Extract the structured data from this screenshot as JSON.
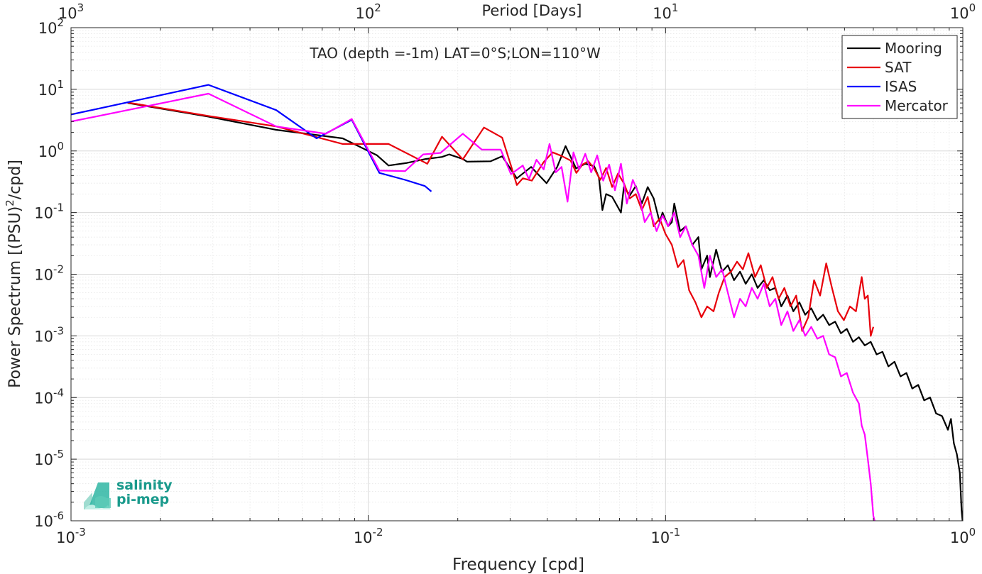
{
  "chart_data": {
    "type": "line",
    "title": "TAO (depth =-1m) LAT=0°S;LON=110°W",
    "xlabel": "Frequency [cpd]",
    "ylabel": "Power Spectrum [(PSU)^2/cpd]",
    "ylabel_parts": {
      "base": "Power Spectrum [(PSU)",
      "sup": "2",
      "tail": "/cpd]"
    },
    "top_xlabel": "Period [Days]",
    "x_scale": "log",
    "y_scale": "log",
    "xlim": [
      0.001,
      1
    ],
    "ylim": [
      1e-06,
      100
    ],
    "grid": true,
    "legend_position": "top-right",
    "x_ticks": [
      {
        "value": 0.001,
        "base": "10",
        "exp": "-3"
      },
      {
        "value": 0.01,
        "base": "10",
        "exp": "-2"
      },
      {
        "value": 0.1,
        "base": "10",
        "exp": "-1"
      },
      {
        "value": 1,
        "base": "10",
        "exp": "0"
      }
    ],
    "top_ticks": [
      {
        "value": 0.001,
        "base": "10",
        "exp": "3"
      },
      {
        "value": 0.01,
        "base": "10",
        "exp": "2"
      },
      {
        "value": 0.1,
        "base": "10",
        "exp": "1"
      },
      {
        "value": 1,
        "base": "10",
        "exp": "0"
      }
    ],
    "y_ticks": [
      {
        "value": 100,
        "base": "10",
        "exp": "2"
      },
      {
        "value": 10,
        "base": "10",
        "exp": "1"
      },
      {
        "value": 1,
        "base": "10",
        "exp": "0"
      },
      {
        "value": 0.1,
        "base": "10",
        "exp": "-1"
      },
      {
        "value": 0.01,
        "base": "10",
        "exp": "-2"
      },
      {
        "value": 0.001,
        "base": "10",
        "exp": "-3"
      },
      {
        "value": 0.0001,
        "base": "10",
        "exp": "-4"
      },
      {
        "value": 1e-05,
        "base": "10",
        "exp": "-5"
      },
      {
        "value": 1e-06,
        "base": "10",
        "exp": "-6"
      }
    ],
    "series": [
      {
        "name": "Mooring",
        "color": "#000000",
        "points": [
          [
            0.00155,
            6.0
          ],
          [
            0.0029,
            3.6
          ],
          [
            0.0049,
            2.2
          ],
          [
            0.0082,
            1.6
          ],
          [
            0.0107,
            0.85
          ],
          [
            0.0117,
            0.58
          ],
          [
            0.0135,
            0.64
          ],
          [
            0.0156,
            0.74
          ],
          [
            0.0177,
            0.8
          ],
          [
            0.0187,
            0.88
          ],
          [
            0.0208,
            0.74
          ],
          [
            0.0215,
            0.67
          ],
          [
            0.0258,
            0.68
          ],
          [
            0.0282,
            0.82
          ],
          [
            0.0316,
            0.36
          ],
          [
            0.0353,
            0.55
          ],
          [
            0.0398,
            0.3
          ],
          [
            0.0432,
            0.55
          ],
          [
            0.0461,
            1.2
          ],
          [
            0.05,
            0.52
          ],
          [
            0.0537,
            0.62
          ],
          [
            0.0575,
            0.57
          ],
          [
            0.0597,
            0.37
          ],
          [
            0.0613,
            0.11
          ],
          [
            0.0631,
            0.2
          ],
          [
            0.0661,
            0.18
          ],
          [
            0.0708,
            0.1
          ],
          [
            0.0724,
            0.26
          ],
          [
            0.0758,
            0.19
          ],
          [
            0.0794,
            0.27
          ],
          [
            0.0832,
            0.14
          ],
          [
            0.0871,
            0.26
          ],
          [
            0.0912,
            0.17
          ],
          [
            0.0955,
            0.07
          ],
          [
            0.0977,
            0.1
          ],
          [
            0.102,
            0.06
          ],
          [
            0.105,
            0.07
          ],
          [
            0.107,
            0.14
          ],
          [
            0.112,
            0.05
          ],
          [
            0.117,
            0.06
          ],
          [
            0.123,
            0.03
          ],
          [
            0.129,
            0.04
          ],
          [
            0.132,
            0.012
          ],
          [
            0.138,
            0.02
          ],
          [
            0.141,
            0.009
          ],
          [
            0.148,
            0.025
          ],
          [
            0.155,
            0.011
          ],
          [
            0.162,
            0.014
          ],
          [
            0.17,
            0.008
          ],
          [
            0.178,
            0.011
          ],
          [
            0.186,
            0.007
          ],
          [
            0.195,
            0.01
          ],
          [
            0.204,
            0.006
          ],
          [
            0.214,
            0.008
          ],
          [
            0.224,
            0.0055
          ],
          [
            0.234,
            0.006
          ],
          [
            0.245,
            0.003
          ],
          [
            0.257,
            0.0045
          ],
          [
            0.269,
            0.0025
          ],
          [
            0.282,
            0.0035
          ],
          [
            0.295,
            0.0022
          ],
          [
            0.309,
            0.0028
          ],
          [
            0.324,
            0.0018
          ],
          [
            0.339,
            0.0022
          ],
          [
            0.355,
            0.0015
          ],
          [
            0.372,
            0.0017
          ],
          [
            0.389,
            0.0011
          ],
          [
            0.407,
            0.0013
          ],
          [
            0.427,
            0.0008
          ],
          [
            0.447,
            0.00095
          ],
          [
            0.468,
            0.0007
          ],
          [
            0.49,
            0.0008
          ],
          [
            0.513,
            0.0005
          ],
          [
            0.537,
            0.00055
          ],
          [
            0.562,
            0.00032
          ],
          [
            0.589,
            0.00038
          ],
          [
            0.617,
            0.00022
          ],
          [
            0.646,
            0.00025
          ],
          [
            0.676,
            0.00014
          ],
          [
            0.708,
            0.00016
          ],
          [
            0.741,
            9e-05
          ],
          [
            0.776,
            0.0001
          ],
          [
            0.813,
            5.5e-05
          ],
          [
            0.851,
            5e-05
          ],
          [
            0.891,
            3e-05
          ],
          [
            0.912,
            4.5e-05
          ],
          [
            0.933,
            1.8e-05
          ],
          [
            0.955,
            1.2e-05
          ],
          [
            0.977,
            6e-06
          ],
          [
            0.99,
            1.5e-06
          ],
          [
            1.0,
            9e-07
          ]
        ]
      },
      {
        "name": "SAT",
        "color": "#e8000b",
        "points": [
          [
            0.00155,
            6.1
          ],
          [
            0.0029,
            3.7
          ],
          [
            0.0049,
            2.5
          ],
          [
            0.0082,
            1.3
          ],
          [
            0.0117,
            1.3
          ],
          [
            0.0158,
            0.62
          ],
          [
            0.0177,
            1.7
          ],
          [
            0.0208,
            0.73
          ],
          [
            0.0245,
            2.4
          ],
          [
            0.0282,
            1.65
          ],
          [
            0.0302,
            0.58
          ],
          [
            0.0316,
            0.28
          ],
          [
            0.0331,
            0.36
          ],
          [
            0.0355,
            0.33
          ],
          [
            0.0389,
            0.66
          ],
          [
            0.0417,
            0.95
          ],
          [
            0.0447,
            0.83
          ],
          [
            0.0479,
            0.7
          ],
          [
            0.0501,
            0.44
          ],
          [
            0.0525,
            0.6
          ],
          [
            0.055,
            0.68
          ],
          [
            0.0575,
            0.52
          ],
          [
            0.0603,
            0.34
          ],
          [
            0.0631,
            0.53
          ],
          [
            0.0661,
            0.26
          ],
          [
            0.0692,
            0.43
          ],
          [
            0.0724,
            0.3
          ],
          [
            0.0758,
            0.17
          ],
          [
            0.0794,
            0.2
          ],
          [
            0.0832,
            0.11
          ],
          [
            0.0871,
            0.18
          ],
          [
            0.0912,
            0.06
          ],
          [
            0.0955,
            0.08
          ],
          [
            0.1,
            0.045
          ],
          [
            0.105,
            0.03
          ],
          [
            0.11,
            0.013
          ],
          [
            0.115,
            0.017
          ],
          [
            0.12,
            0.0055
          ],
          [
            0.126,
            0.0035
          ],
          [
            0.132,
            0.002
          ],
          [
            0.138,
            0.003
          ],
          [
            0.145,
            0.0025
          ],
          [
            0.151,
            0.005
          ],
          [
            0.158,
            0.009
          ],
          [
            0.166,
            0.011
          ],
          [
            0.174,
            0.016
          ],
          [
            0.182,
            0.012
          ],
          [
            0.19,
            0.022
          ],
          [
            0.2,
            0.009
          ],
          [
            0.209,
            0.014
          ],
          [
            0.219,
            0.006
          ],
          [
            0.229,
            0.009
          ],
          [
            0.24,
            0.004
          ],
          [
            0.251,
            0.006
          ],
          [
            0.263,
            0.003
          ],
          [
            0.275,
            0.0045
          ],
          [
            0.288,
            0.0012
          ],
          [
            0.302,
            0.002
          ],
          [
            0.316,
            0.008
          ],
          [
            0.331,
            0.0045
          ],
          [
            0.347,
            0.015
          ],
          [
            0.363,
            0.006
          ],
          [
            0.38,
            0.0025
          ],
          [
            0.398,
            0.0018
          ],
          [
            0.417,
            0.003
          ],
          [
            0.437,
            0.0025
          ],
          [
            0.457,
            0.009
          ],
          [
            0.468,
            0.004
          ],
          [
            0.479,
            0.0045
          ],
          [
            0.49,
            0.001
          ],
          [
            0.5,
            0.0014
          ]
        ]
      },
      {
        "name": "ISAS",
        "color": "#0000ff",
        "points": [
          [
            0.001,
            3.9
          ],
          [
            0.0029,
            11.8
          ],
          [
            0.0049,
            4.6
          ],
          [
            0.0067,
            1.6
          ],
          [
            0.0088,
            3.2
          ],
          [
            0.0109,
            0.44
          ],
          [
            0.0133,
            0.34
          ],
          [
            0.0155,
            0.27
          ],
          [
            0.0163,
            0.22
          ]
        ]
      },
      {
        "name": "Mercator",
        "color": "#ff00ff",
        "points": [
          [
            0.001,
            3.0
          ],
          [
            0.0029,
            8.5
          ],
          [
            0.0049,
            2.5
          ],
          [
            0.0072,
            1.9
          ],
          [
            0.0088,
            3.3
          ],
          [
            0.0109,
            0.48
          ],
          [
            0.0133,
            0.47
          ],
          [
            0.0153,
            0.88
          ],
          [
            0.0175,
            0.93
          ],
          [
            0.0208,
            1.9
          ],
          [
            0.0241,
            1.05
          ],
          [
            0.0279,
            1.05
          ],
          [
            0.0302,
            0.42
          ],
          [
            0.0331,
            0.58
          ],
          [
            0.0347,
            0.35
          ],
          [
            0.0368,
            0.72
          ],
          [
            0.0389,
            0.5
          ],
          [
            0.0407,
            1.3
          ],
          [
            0.0427,
            0.45
          ],
          [
            0.0447,
            0.55
          ],
          [
            0.0468,
            0.15
          ],
          [
            0.049,
            0.95
          ],
          [
            0.0512,
            0.5
          ],
          [
            0.0537,
            0.9
          ],
          [
            0.0562,
            0.45
          ],
          [
            0.0589,
            0.85
          ],
          [
            0.0617,
            0.33
          ],
          [
            0.0646,
            0.6
          ],
          [
            0.0676,
            0.23
          ],
          [
            0.0708,
            0.62
          ],
          [
            0.0741,
            0.14
          ],
          [
            0.0776,
            0.34
          ],
          [
            0.0813,
            0.2
          ],
          [
            0.0851,
            0.07
          ],
          [
            0.0891,
            0.1
          ],
          [
            0.0933,
            0.05
          ],
          [
            0.0977,
            0.09
          ],
          [
            0.102,
            0.06
          ],
          [
            0.107,
            0.1
          ],
          [
            0.112,
            0.04
          ],
          [
            0.117,
            0.06
          ],
          [
            0.123,
            0.03
          ],
          [
            0.129,
            0.02
          ],
          [
            0.135,
            0.006
          ],
          [
            0.141,
            0.02
          ],
          [
            0.148,
            0.009
          ],
          [
            0.155,
            0.012
          ],
          [
            0.162,
            0.005
          ],
          [
            0.17,
            0.002
          ],
          [
            0.178,
            0.004
          ],
          [
            0.186,
            0.003
          ],
          [
            0.195,
            0.006
          ],
          [
            0.204,
            0.004
          ],
          [
            0.214,
            0.007
          ],
          [
            0.224,
            0.003
          ],
          [
            0.234,
            0.004
          ],
          [
            0.245,
            0.0015
          ],
          [
            0.257,
            0.0025
          ],
          [
            0.269,
            0.0012
          ],
          [
            0.282,
            0.0018
          ],
          [
            0.295,
            0.001
          ],
          [
            0.309,
            0.0014
          ],
          [
            0.324,
            0.0009
          ],
          [
            0.339,
            0.001
          ],
          [
            0.355,
            0.0005
          ],
          [
            0.372,
            0.00045
          ],
          [
            0.389,
            0.00022
          ],
          [
            0.407,
            0.00025
          ],
          [
            0.427,
            0.00012
          ],
          [
            0.447,
            8e-05
          ],
          [
            0.457,
            3.5e-05
          ],
          [
            0.468,
            2.5e-05
          ],
          [
            0.479,
            1e-05
          ],
          [
            0.49,
            4e-06
          ],
          [
            0.5,
            1.2e-06
          ],
          [
            0.505,
            1e-06
          ]
        ]
      }
    ]
  },
  "logo": {
    "line1": "salinity",
    "line2": "pi-mep",
    "color": "#1a9a8c"
  }
}
